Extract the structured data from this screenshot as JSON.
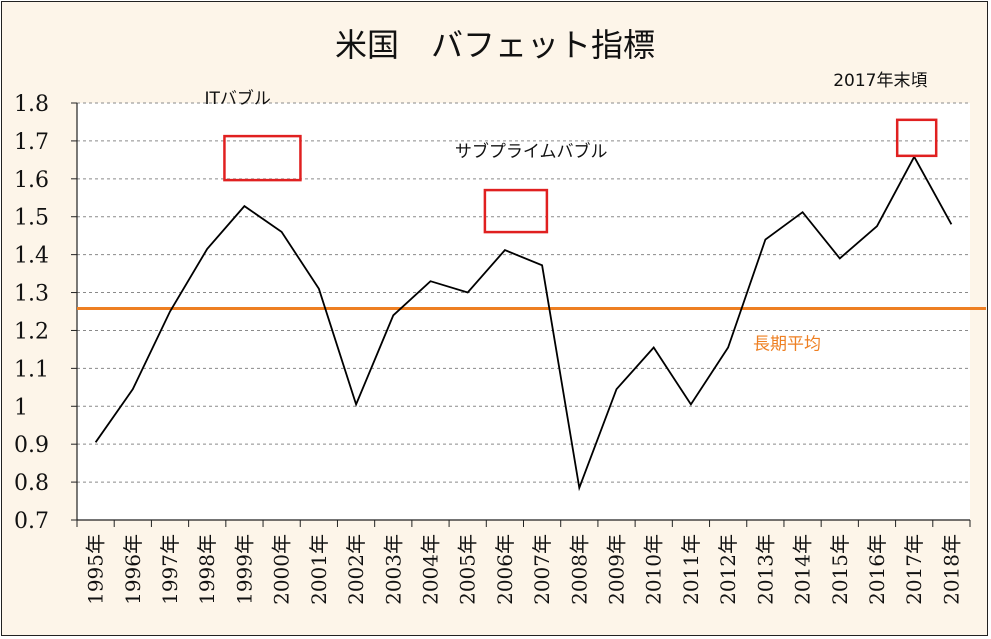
{
  "chart_data": {
    "type": "line",
    "title": "米国　バフェット指標",
    "xlabel": "",
    "ylabel": "",
    "ylim": [
      0.7,
      1.8
    ],
    "yticks": [
      "0.7",
      "0.8",
      "0.9",
      "1",
      "1.1",
      "1.2",
      "1.3",
      "1.4",
      "1.5",
      "1.6",
      "1.7",
      "1.8"
    ],
    "categories": [
      "1995年",
      "1996年",
      "1997年",
      "1998年",
      "1999年",
      "2000年",
      "2001年",
      "2002年",
      "2003年",
      "2004年",
      "2005年",
      "2006年",
      "2007年",
      "2008年",
      "2009年",
      "2010年",
      "2011年",
      "2012年",
      "2013年",
      "2014年",
      "2015年",
      "2016年",
      "2017年",
      "2018年"
    ],
    "series": [
      {
        "values": [
          0.905,
          1.045,
          1.25,
          1.415,
          1.528,
          1.46,
          1.31,
          1.005,
          1.24,
          1.33,
          1.3,
          1.412,
          1.372,
          0.785,
          1.045,
          1.155,
          1.005,
          1.155,
          1.44,
          1.512,
          1.39,
          1.475,
          1.658,
          1.48
        ],
        "color": "#000000"
      }
    ],
    "grid": true,
    "reference_line": {
      "label": "長期平均",
      "value": 1.258,
      "color": "#ee7f22"
    },
    "annotations": [
      {
        "label": "ITバブル",
        "category": "1999年"
      },
      {
        "label": "サブプライムバブル",
        "category": "2006年"
      },
      {
        "label": "2017年末頃",
        "category": "2017年"
      }
    ],
    "highlight_color": "#e02020"
  }
}
